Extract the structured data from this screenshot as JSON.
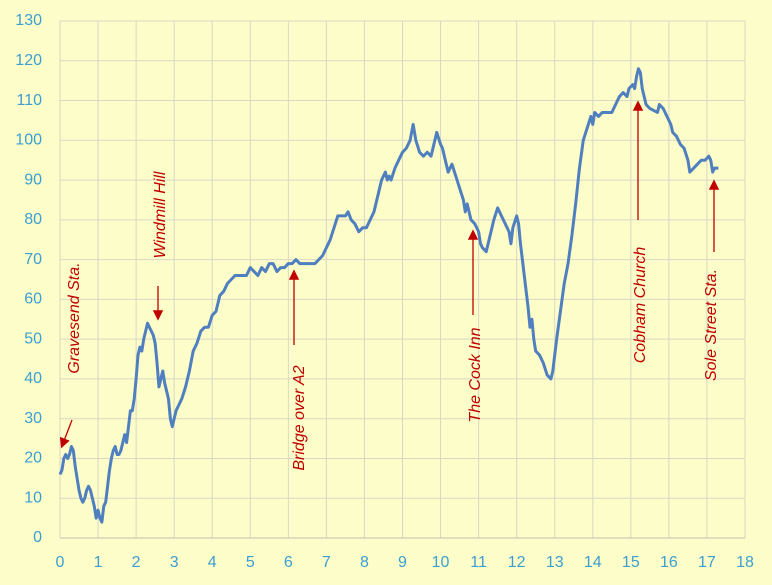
{
  "chart_data": {
    "type": "line",
    "x": [
      0,
      0.05,
      0.1,
      0.15,
      0.2,
      0.25,
      0.3,
      0.35,
      0.4,
      0.45,
      0.5,
      0.55,
      0.6,
      0.65,
      0.7,
      0.75,
      0.8,
      0.85,
      0.9,
      0.95,
      1.0,
      1.05,
      1.1,
      1.15,
      1.2,
      1.25,
      1.3,
      1.35,
      1.4,
      1.45,
      1.5,
      1.55,
      1.6,
      1.65,
      1.7,
      1.75,
      1.8,
      1.85,
      1.9,
      1.95,
      2.0,
      2.05,
      2.1,
      2.15,
      2.2,
      2.25,
      2.3,
      2.35,
      2.4,
      2.45,
      2.5,
      2.55,
      2.6,
      2.65,
      2.7,
      2.75,
      2.8,
      2.85,
      2.9,
      2.95,
      3.0,
      3.05,
      3.1,
      3.2,
      3.3,
      3.4,
      3.5,
      3.6,
      3.7,
      3.8,
      3.9,
      4.0,
      4.1,
      4.2,
      4.3,
      4.4,
      4.5,
      4.6,
      4.7,
      4.8,
      4.9,
      5.0,
      5.1,
      5.2,
      5.3,
      5.4,
      5.5,
      5.6,
      5.7,
      5.8,
      5.9,
      6.0,
      6.1,
      6.2,
      6.3,
      6.4,
      6.5,
      6.6,
      6.7,
      6.8,
      6.9,
      7.0,
      7.1,
      7.2,
      7.3,
      7.4,
      7.5,
      7.57,
      7.65,
      7.75,
      7.85,
      7.95,
      8.05,
      8.15,
      8.25,
      8.35,
      8.45,
      8.55,
      8.6,
      8.65,
      8.7,
      8.8,
      8.9,
      9.0,
      9.1,
      9.2,
      9.28,
      9.35,
      9.45,
      9.55,
      9.65,
      9.75,
      9.85,
      9.9,
      10.0,
      10.05,
      10.1,
      10.2,
      10.3,
      10.4,
      10.5,
      10.6,
      10.65,
      10.7,
      10.8,
      10.9,
      11.0,
      11.05,
      11.1,
      11.2,
      11.3,
      11.4,
      11.5,
      11.6,
      11.7,
      11.8,
      11.85,
      11.9,
      12.0,
      12.05,
      12.1,
      12.2,
      12.3,
      12.35,
      12.4,
      12.45,
      12.5,
      12.6,
      12.7,
      12.8,
      12.9,
      12.95,
      13.05,
      13.15,
      13.25,
      13.35,
      13.45,
      13.55,
      13.65,
      13.75,
      13.85,
      13.95,
      14.0,
      14.05,
      14.15,
      14.25,
      14.5,
      14.6,
      14.7,
      14.8,
      14.9,
      14.95,
      15.05,
      15.1,
      15.15,
      15.2,
      15.25,
      15.3,
      15.4,
      15.5,
      15.6,
      15.7,
      15.75,
      15.85,
      15.95,
      16.05,
      16.1,
      16.2,
      16.3,
      16.4,
      16.5,
      16.55,
      16.65,
      16.75,
      16.85,
      16.95,
      17.05,
      17.1,
      17.15,
      17.2,
      17.3
    ],
    "values": [
      16,
      17,
      20,
      21,
      20,
      21,
      23,
      22,
      18,
      15,
      12,
      10,
      9,
      10,
      12,
      13,
      12,
      10,
      8,
      5,
      7,
      5,
      4,
      8,
      9,
      13,
      17,
      20,
      22,
      23,
      21,
      21,
      22,
      24,
      26,
      24,
      28,
      32,
      32,
      35,
      40,
      46,
      48,
      47,
      50,
      52,
      54,
      53,
      52,
      51,
      49,
      44,
      38,
      40,
      42,
      39,
      37,
      35,
      30,
      28,
      30,
      32,
      33,
      35,
      38,
      42,
      47,
      49,
      52,
      53,
      53,
      56,
      57,
      61,
      62,
      64,
      65,
      66,
      66,
      66,
      66,
      68,
      67,
      66,
      68,
      67,
      69,
      69,
      67,
      68,
      68,
      69,
      69,
      70,
      69,
      69,
      69,
      69,
      69,
      70,
      71,
      73,
      75,
      78,
      81,
      81,
      81,
      82,
      80,
      79,
      77,
      78,
      78,
      80,
      82,
      86,
      90,
      92,
      90,
      91,
      90,
      93,
      95,
      97,
      98,
      100,
      104,
      100,
      97,
      96,
      97,
      96,
      100,
      102,
      99,
      98,
      96,
      92,
      94,
      91,
      88,
      85,
      82,
      84,
      80,
      79,
      77,
      74,
      73,
      72,
      76,
      80,
      83,
      81,
      79,
      77,
      74,
      78,
      81,
      79,
      74,
      66,
      58,
      53,
      55,
      50,
      47,
      46,
      44,
      41,
      40,
      42,
      50,
      57,
      64,
      69,
      76,
      84,
      93,
      100,
      103,
      106,
      104,
      107,
      106,
      107,
      107,
      109,
      111,
      112,
      111,
      113,
      114,
      113,
      116,
      118,
      117,
      113,
      109,
      108,
      107.5,
      107,
      109,
      108,
      106,
      104,
      102,
      101,
      99,
      98,
      95,
      92,
      93,
      94,
      95,
      95,
      96,
      95,
      92,
      93,
      93
    ],
    "color": "#4f7fbf",
    "xlim": [
      0,
      18
    ],
    "ylim": [
      0,
      130
    ],
    "xticks": [
      0,
      1,
      2,
      3,
      4,
      5,
      6,
      7,
      8,
      9,
      10,
      11,
      12,
      13,
      14,
      15,
      16,
      17,
      18
    ],
    "yticks": [
      0,
      10,
      20,
      30,
      40,
      50,
      60,
      70,
      80,
      90,
      100,
      110,
      120,
      130
    ],
    "grid": true,
    "annotations": [
      "Gravesend Sta.",
      "Windmill Hill",
      "Bridge over A2",
      "The Cock Inn",
      "Cobham Church",
      "Sole Street Sta."
    ]
  }
}
